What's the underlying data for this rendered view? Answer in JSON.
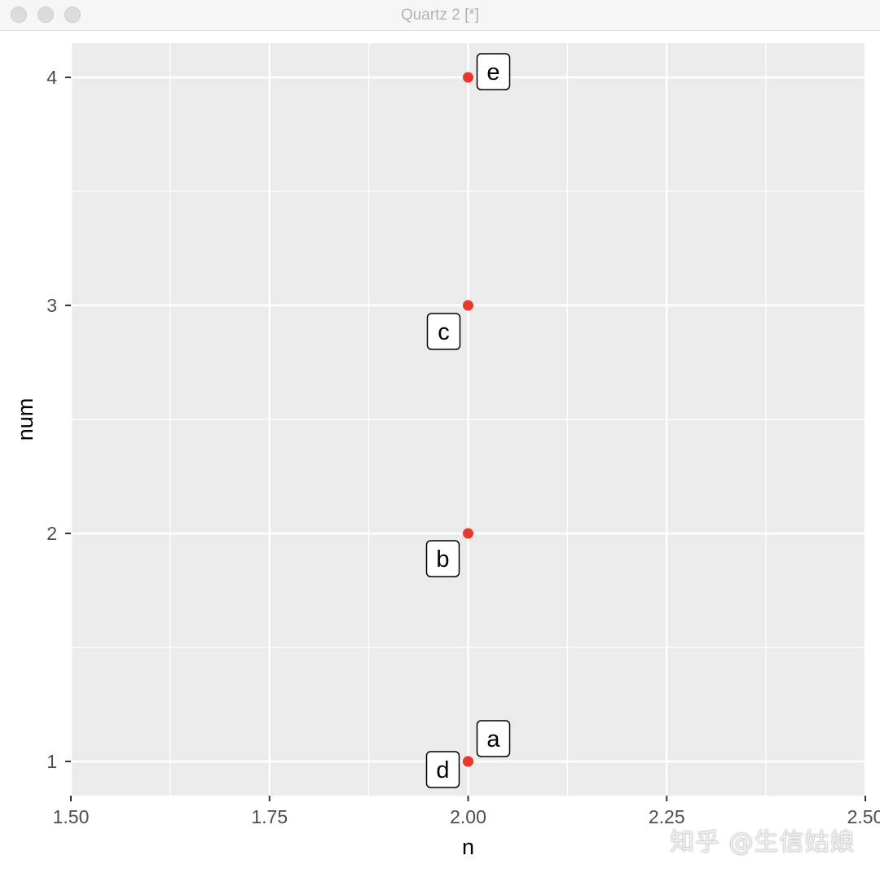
{
  "window": {
    "title": "Quartz 2 [*]"
  },
  "watermark": "知乎 @生信姑娘",
  "colors": {
    "panel_bg": "#ebebeb",
    "grid": "#ffffff",
    "point": "#e8392b",
    "axis_text": "#4d4d4d"
  },
  "chart_data": {
    "type": "scatter",
    "title": "",
    "xlabel": "n",
    "ylabel": "num",
    "xlim": [
      1.5,
      2.5
    ],
    "ylim": [
      0.85,
      4.15
    ],
    "x_ticks": [
      1.5,
      1.75,
      2.0,
      2.25,
      2.5
    ],
    "x_tick_labels": [
      "1.50",
      "1.75",
      "2.00",
      "2.25",
      "2.50"
    ],
    "y_ticks": [
      1,
      2,
      3,
      4
    ],
    "y_tick_labels": [
      "1",
      "2",
      "3",
      "4"
    ],
    "grid": true,
    "points": [
      {
        "label": "a",
        "x": 2.0,
        "y": 1
      },
      {
        "label": "d",
        "x": 2.0,
        "y": 1
      },
      {
        "label": "b",
        "x": 2.0,
        "y": 2
      },
      {
        "label": "c",
        "x": 2.0,
        "y": 3
      },
      {
        "label": "e",
        "x": 2.0,
        "y": 4
      }
    ]
  }
}
